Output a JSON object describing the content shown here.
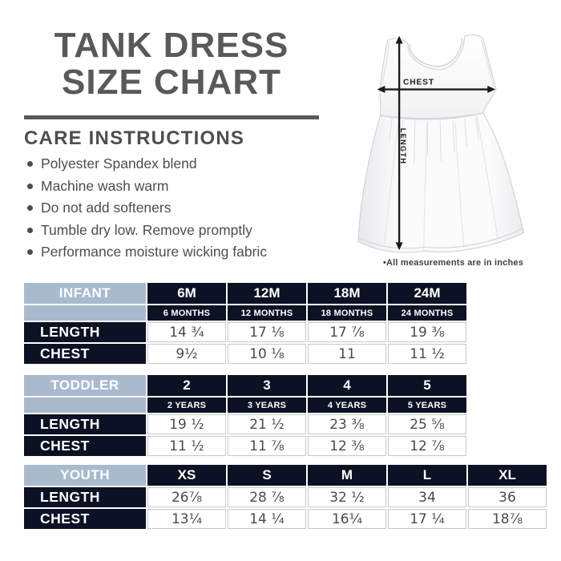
{
  "page": {
    "title_line1": "TANK DRESS",
    "title_line2": "SIZE CHART",
    "care_heading": "CARE INSTRUCTIONS",
    "care_items": [
      "Polyester Spandex blend",
      "Machine wash warm",
      "Do not add softeners",
      "Tumble dry low. Remove promptly",
      "Performance moisture wicking fabric"
    ],
    "measurement_note": "•All measurements are in inches"
  },
  "diagram": {
    "chest_label": "CHEST",
    "length_label": "LENGTH"
  },
  "colors": {
    "heading_gray": "#58595b",
    "body_text_gray": "#4d4d4f",
    "table_navy": "#0d1124",
    "table_steel_blue": "#a9bacd",
    "value_text": "#4a4a4c",
    "cell_border": "#c8c8c8",
    "arrow_black": "#1b1b1d"
  },
  "chart_data": {
    "type": "table",
    "title": "TANK DRESS SIZE CHART",
    "units": "inches",
    "tables": [
      {
        "name": "INFANT",
        "sizes": [
          "6M",
          "12M",
          "18M",
          "24M"
        ],
        "size_subs": [
          "6 MONTHS",
          "12 MONTHS",
          "18 MONTHS",
          "24 MONTHS"
        ],
        "rows": [
          {
            "label": "LENGTH",
            "values": [
              "14 ¾",
              "17 ⅛",
              "17 ⅞",
              "19 ⅜"
            ]
          },
          {
            "label": "CHEST",
            "values": [
              "9½",
              "10 ⅛",
              "11",
              "11 ½"
            ]
          }
        ]
      },
      {
        "name": "TODDLER",
        "sizes": [
          "2",
          "3",
          "4",
          "5"
        ],
        "size_subs": [
          "2 YEARS",
          "3 YEARS",
          "4 YEARS",
          "5 YEARS"
        ],
        "rows": [
          {
            "label": "LENGTH",
            "values": [
              "19 ½",
              "21 ½",
              "23 ⅜",
              "25 ⅝"
            ]
          },
          {
            "label": "CHEST",
            "values": [
              "11 ½",
              "11 ⅞",
              "12 ⅜",
              "12 ⅞"
            ]
          }
        ]
      },
      {
        "name": "YOUTH",
        "sizes": [
          "XS",
          "S",
          "M",
          "L",
          "XL"
        ],
        "size_subs": null,
        "rows": [
          {
            "label": "LENGTH",
            "values": [
              "26⅞",
              "28 ⅞",
              "32 ½",
              "34",
              "36"
            ]
          },
          {
            "label": "CHEST",
            "values": [
              "13¼",
              "14 ¼",
              "16¼",
              "17 ¼",
              "18⅞"
            ]
          }
        ]
      }
    ]
  }
}
